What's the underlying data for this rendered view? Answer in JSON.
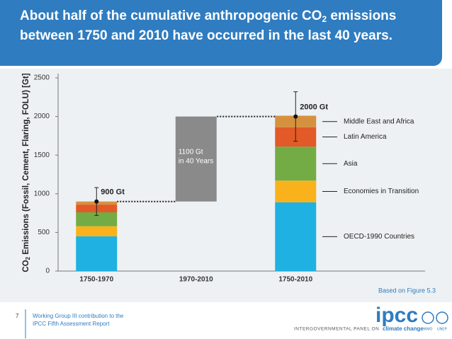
{
  "header": {
    "title_parts": [
      "About half of the cumulative anthropogenic CO",
      "2",
      " emissions"
    ],
    "title_line2": "between 1750 and 2010 have occurred in the last 40 years."
  },
  "chart_data": {
    "type": "stacked_bar",
    "ylabel_parts": [
      "CO",
      "2",
      " Emissions (Fossil, Cement, Flaring, FOLU) [Gt]"
    ],
    "categories": [
      "1750-1970",
      "1970-2010",
      "1750-2010"
    ],
    "series": [
      {
        "name": "OECD-1990 Countries",
        "color": "#1eb1e2",
        "values": [
          450,
          null,
          890
        ]
      },
      {
        "name": "Economies in Transition",
        "color": "#f9b21b",
        "values": [
          130,
          null,
          280
        ]
      },
      {
        "name": "Asia",
        "color": "#73ac45",
        "values": [
          180,
          null,
          440
        ]
      },
      {
        "name": "Latin America",
        "color": "#e25a27",
        "values": [
          100,
          null,
          250
        ]
      },
      {
        "name": "Middle East and Africa",
        "color": "#d6913f",
        "values": [
          40,
          null,
          150
        ]
      }
    ],
    "increment_values": [
      null,
      1100,
      null
    ],
    "increment_labels": [
      null,
      [
        "1100 Gt",
        "in 40 Years"
      ],
      null
    ],
    "increment_color": "#8a8a8a",
    "totals": [
      {
        "value": 900,
        "label": "900 Gt",
        "error": 180
      },
      null,
      {
        "value": 2000,
        "label": "2000 Gt",
        "error": 320
      }
    ],
    "ylim": [
      0,
      2500
    ],
    "yticks": [
      0,
      500,
      1000,
      1500,
      2000,
      2500
    ],
    "source": "Based on Figure 5.3"
  },
  "footer": {
    "page": "7",
    "lines": [
      "Working Group III contribution to the",
      "IPCC Fifth Assessment Report"
    ],
    "logo": "ipcc",
    "panel_name": "INTERGOVERNMENTAL PANEL ON",
    "panel_name_2": "climate change",
    "emblems": [
      "WMO",
      "UNEP"
    ]
  }
}
